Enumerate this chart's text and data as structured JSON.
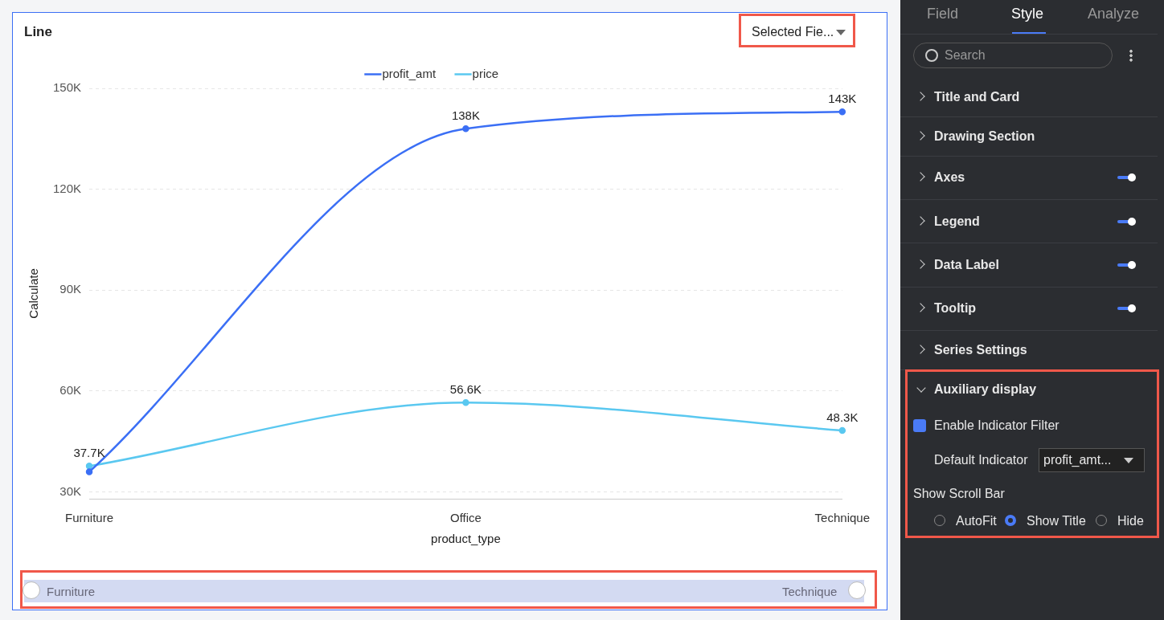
{
  "chart_data": {
    "type": "line",
    "title": "Line",
    "xlabel": "product_type",
    "ylabel": "Calculate",
    "categories": [
      "Furniture",
      "Office",
      "Technique"
    ],
    "series": [
      {
        "name": "profit_amt",
        "color": "#3b6ff5",
        "values": [
          36000,
          138000,
          143000
        ],
        "value_labels": [
          null,
          "138K",
          "143K"
        ]
      },
      {
        "name": "price",
        "color": "#5ac8f0",
        "values": [
          37700,
          56600,
          48300
        ],
        "value_labels": [
          "37.7K",
          "56.6K",
          "48.3K"
        ]
      }
    ],
    "ylim": [
      28000,
      150000
    ],
    "yticks": [
      {
        "value": 30000,
        "label": "30K"
      },
      {
        "value": 60000,
        "label": "60K"
      },
      {
        "value": 90000,
        "label": "90K"
      },
      {
        "value": 120000,
        "label": "120K"
      },
      {
        "value": 150000,
        "label": "150K"
      }
    ],
    "grid": "y",
    "legend": "top",
    "marker": "circle",
    "line_style": "solid",
    "annotations": [
      "Selected Fie...",
      "Field",
      "Style",
      "Analyze",
      "Search",
      "Title and Card",
      "Drawing Section",
      "Axes",
      "Legend",
      "Data Label",
      "Tooltip",
      "Series Settings",
      "Auxiliary display",
      "Enable Indicator Filter",
      "Default Indicator",
      "profit_amt...",
      "Show Scroll Bar",
      "AutoFit",
      "Show Title",
      "Hide"
    ]
  }
}
